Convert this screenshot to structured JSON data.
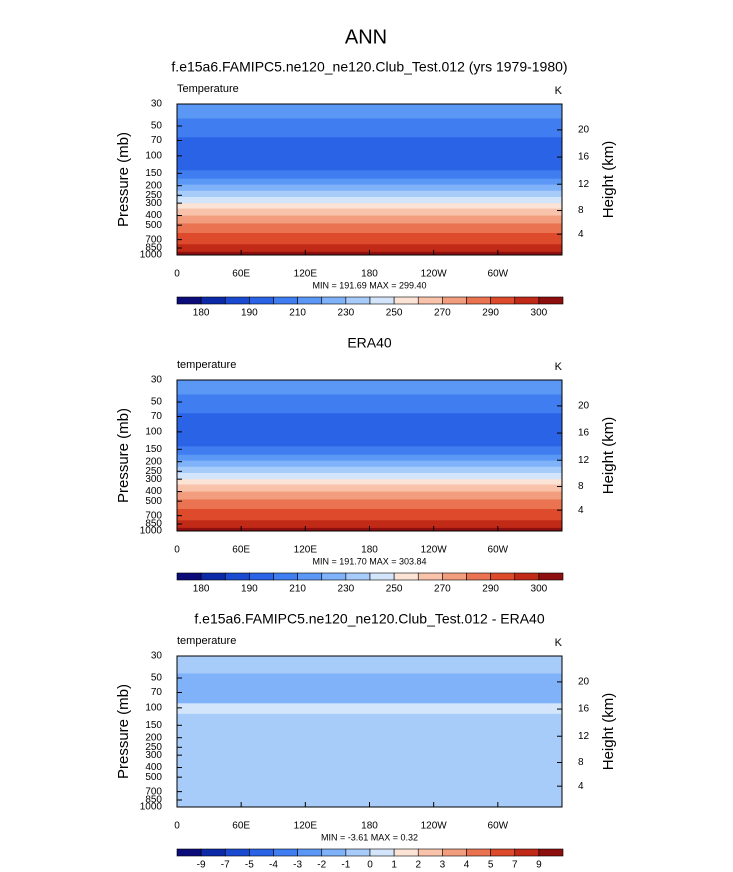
{
  "title": "ANN",
  "chart_data": [
    {
      "type": "contour",
      "title": "f.e15a6.FAMIPC5.ne120_ne120.Club_Test.012 (yrs 1979-1980)",
      "left_label": "Temperature",
      "right_label": "K",
      "ylabel": "Pressure (mb)",
      "y2label": "Height (km)",
      "log_y": true,
      "xlim": [
        0,
        360
      ],
      "xticks": [
        0,
        {
          "value": 60,
          "label": "60E"
        },
        {
          "value": 120,
          "label": "120E"
        },
        180,
        {
          "value": 240,
          "label": "120W"
        },
        {
          "value": 300,
          "label": "60W"
        }
      ],
      "ylim": [
        1000,
        30
      ],
      "yticks": [
        30,
        50,
        70,
        100,
        150,
        200,
        250,
        300,
        400,
        500,
        700,
        850,
        1000
      ],
      "y2ticks": [
        4,
        8,
        12,
        16,
        20
      ],
      "stats": "MIN = 191.69  MAX = 299.40",
      "bands": [
        [
          30,
          42,
          "#5b98f6"
        ],
        [
          42,
          65,
          "#3f7df0"
        ],
        [
          65,
          140,
          "#2a63e6"
        ],
        [
          140,
          170,
          "#3f7df0"
        ],
        [
          170,
          195,
          "#5b98f6"
        ],
        [
          195,
          225,
          "#7fb2f8"
        ],
        [
          225,
          260,
          "#a8ccfa"
        ],
        [
          260,
          300,
          "#d2e5fb"
        ],
        [
          300,
          340,
          "#fbe3d6"
        ],
        [
          340,
          400,
          "#f8c3aa"
        ],
        [
          400,
          480,
          "#f29e7e"
        ],
        [
          480,
          600,
          "#ea7452"
        ],
        [
          600,
          780,
          "#dd4a2c"
        ],
        [
          780,
          930,
          "#c02a17"
        ],
        [
          930,
          1000,
          "#8e0f0f"
        ]
      ],
      "colorbar": {
        "levels": [
          180,
          190,
          210,
          230,
          250,
          270,
          290,
          300
        ],
        "label_every": 2,
        "colors": [
          "#0b0b7a",
          "#0c2aa8",
          "#1a4ad0",
          "#2a63e6",
          "#3f7df0",
          "#5b98f6",
          "#7fb2f8",
          "#a8ccfa",
          "#d2e5fb",
          "#fbe3d6",
          "#f8c3aa",
          "#f29e7e",
          "#ea7452",
          "#dd4a2c",
          "#c02a17",
          "#8e0f0f"
        ]
      }
    },
    {
      "type": "contour",
      "title": "ERA40",
      "left_label": "temperature",
      "right_label": "K",
      "ylabel": "Pressure (mb)",
      "y2label": "Height (km)",
      "log_y": true,
      "xlim": [
        0,
        360
      ],
      "xticks": [
        0,
        {
          "value": 60,
          "label": "60E"
        },
        {
          "value": 120,
          "label": "120E"
        },
        180,
        {
          "value": 240,
          "label": "120W"
        },
        {
          "value": 300,
          "label": "60W"
        }
      ],
      "ylim": [
        1000,
        30
      ],
      "yticks": [
        30,
        50,
        70,
        100,
        150,
        200,
        250,
        300,
        400,
        500,
        700,
        850,
        1000
      ],
      "y2ticks": [
        4,
        8,
        12,
        16,
        20
      ],
      "stats": "MIN = 191.70  MAX = 303.84",
      "bands": [
        [
          30,
          42,
          "#5b98f6"
        ],
        [
          42,
          65,
          "#3f7df0"
        ],
        [
          65,
          140,
          "#2a63e6"
        ],
        [
          140,
          170,
          "#3f7df0"
        ],
        [
          170,
          195,
          "#5b98f6"
        ],
        [
          195,
          225,
          "#7fb2f8"
        ],
        [
          225,
          260,
          "#a8ccfa"
        ],
        [
          260,
          300,
          "#d2e5fb"
        ],
        [
          300,
          340,
          "#fbe3d6"
        ],
        [
          340,
          400,
          "#f8c3aa"
        ],
        [
          400,
          480,
          "#f29e7e"
        ],
        [
          480,
          600,
          "#ea7452"
        ],
        [
          600,
          780,
          "#dd4a2c"
        ],
        [
          780,
          930,
          "#c02a17"
        ],
        [
          930,
          1000,
          "#8e0f0f"
        ]
      ],
      "colorbar": {
        "levels": [
          180,
          190,
          210,
          230,
          250,
          270,
          290,
          300
        ],
        "label_every": 2,
        "colors": [
          "#0b0b7a",
          "#0c2aa8",
          "#1a4ad0",
          "#2a63e6",
          "#3f7df0",
          "#5b98f6",
          "#7fb2f8",
          "#a8ccfa",
          "#d2e5fb",
          "#fbe3d6",
          "#f8c3aa",
          "#f29e7e",
          "#ea7452",
          "#dd4a2c",
          "#c02a17",
          "#8e0f0f"
        ]
      }
    },
    {
      "type": "contour",
      "title": "f.e15a6.FAMIPC5.ne120_ne120.Club_Test.012 - ERA40",
      "left_label": "temperature",
      "right_label": "K",
      "ylabel": "Pressure (mb)",
      "y2label": "Height (km)",
      "log_y": true,
      "xlim": [
        0,
        360
      ],
      "xticks": [
        0,
        {
          "value": 60,
          "label": "60E"
        },
        {
          "value": 120,
          "label": "120E"
        },
        180,
        {
          "value": 240,
          "label": "120W"
        },
        {
          "value": 300,
          "label": "60W"
        }
      ],
      "ylim": [
        1000,
        30
      ],
      "yticks": [
        30,
        50,
        70,
        100,
        150,
        200,
        250,
        300,
        400,
        500,
        700,
        850,
        1000
      ],
      "y2ticks": [
        4,
        8,
        12,
        16,
        20
      ],
      "stats": "MIN = -3.61  MAX =  0.32",
      "bands": [
        [
          30,
          45,
          "#a8ccfa"
        ],
        [
          45,
          90,
          "#7fb2f8"
        ],
        [
          90,
          115,
          "#d2e5fb"
        ],
        [
          115,
          170,
          "#a8ccfa"
        ],
        [
          170,
          230,
          "#a8ccfa"
        ],
        [
          230,
          1000,
          "#a8ccfa"
        ]
      ],
      "colorbar": {
        "levels": [
          -9,
          -7,
          -5,
          -4,
          -3,
          -2,
          -1,
          0,
          1,
          2,
          3,
          4,
          5,
          7,
          9
        ],
        "label_every": 1,
        "colors": [
          "#0b0b7a",
          "#0c2aa8",
          "#1a4ad0",
          "#2a63e6",
          "#3f7df0",
          "#5b98f6",
          "#7fb2f8",
          "#a8ccfa",
          "#d2e5fb",
          "#fbe3d6",
          "#f8c3aa",
          "#f29e7e",
          "#ea7452",
          "#dd4a2c",
          "#c02a17",
          "#8e0f0f"
        ]
      }
    }
  ]
}
